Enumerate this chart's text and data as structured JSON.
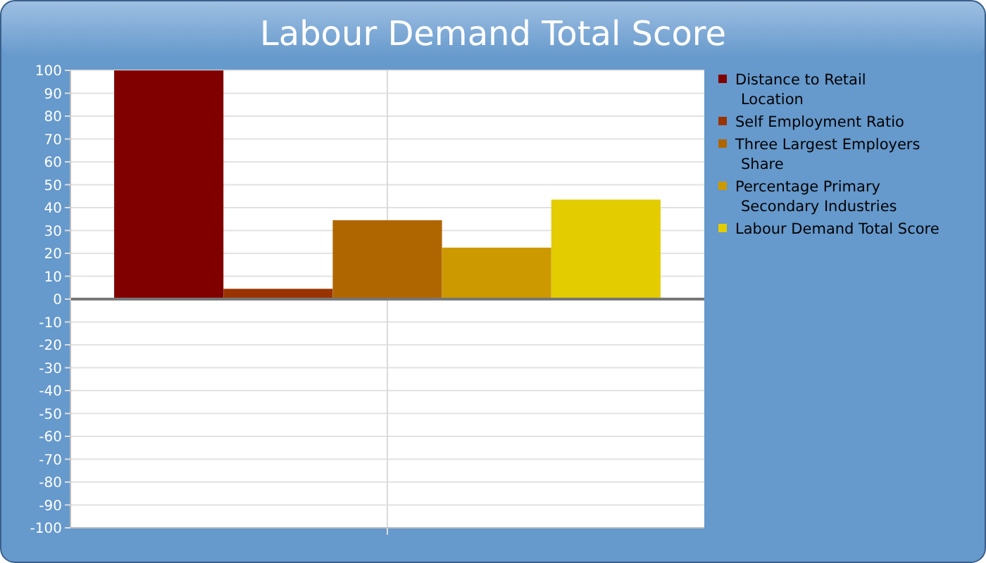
{
  "chart_data": {
    "type": "bar",
    "title": "Labour Demand Total Score",
    "categories": [
      null
    ],
    "series": [
      {
        "name": "Distance to Retail Location",
        "color": "#800000",
        "values": [
          100
        ]
      },
      {
        "name": "Self Employment Ratio",
        "color": "#993300",
        "values": [
          4.5
        ]
      },
      {
        "name": "Three Largest Employers Share",
        "color": "#b06600",
        "values": [
          34.5
        ]
      },
      {
        "name": "Percentage Primary Secondary Industries",
        "color": "#cc9900",
        "values": [
          22.5
        ]
      },
      {
        "name": "Labour Demand Total Score",
        "color": "#e3cc00",
        "values": [
          43.5
        ]
      }
    ],
    "ylim": [
      -100,
      100
    ],
    "yticks": [
      -100,
      -90,
      -80,
      -70,
      -60,
      -50,
      -40,
      -30,
      -20,
      -10,
      0,
      10,
      20,
      30,
      40,
      50,
      60,
      70,
      80,
      90,
      100
    ],
    "grid": true,
    "legend": "right"
  }
}
